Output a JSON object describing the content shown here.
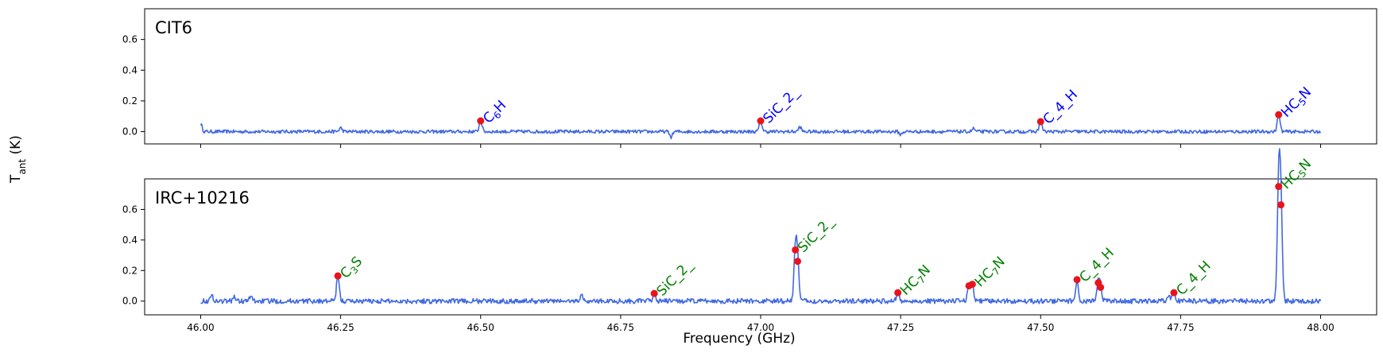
{
  "figure": {
    "xlabel": "Frequency (GHz)",
    "ylabel_main": "T",
    "ylabel_sub": "ant",
    "ylabel_unit": " (K)"
  },
  "chart_data": [
    {
      "type": "line",
      "title": "CIT6",
      "xlabel": "Frequency (GHz)",
      "ylabel": "Tant (K)",
      "xlim": [
        45.9,
        48.1
      ],
      "ylim": [
        -0.08,
        0.8
      ],
      "xticks": [
        46.0,
        46.25,
        46.5,
        46.75,
        47.0,
        47.25,
        47.5,
        47.75,
        48.0
      ],
      "xtick_labels_shown": false,
      "yticks": [
        0.0,
        0.2,
        0.4,
        0.6
      ],
      "ytick_labels": [
        "0.0",
        "0.2",
        "0.4",
        "0.6"
      ],
      "line_color": "#4169E1",
      "label_color": "#0000FF",
      "marker_color": "#E8141C",
      "baseline": [
        {
          "x": 46.0,
          "y": 0.05
        },
        {
          "x": 46.25,
          "y": 0.025
        },
        {
          "x": 46.84,
          "y": -0.035
        },
        {
          "x": 47.07,
          "y": 0.03
        },
        {
          "x": 47.25,
          "y": -0.02
        },
        {
          "x": 47.38,
          "y": 0.02
        }
      ],
      "peaks": [
        {
          "x": 46.5,
          "y": 0.07,
          "label": "C<sub>6</sub>H"
        },
        {
          "x": 47.0,
          "y": 0.07,
          "label": "SiC_2_"
        },
        {
          "x": 47.5,
          "y": 0.065,
          "label": "C_4_H"
        },
        {
          "x": 47.925,
          "y": 0.11,
          "label": "HC<sub>5</sub>N"
        }
      ]
    },
    {
      "type": "line",
      "title": "IRC+10216",
      "xlabel": "Frequency (GHz)",
      "ylabel": "Tant (K)",
      "xlim": [
        45.9,
        48.1
      ],
      "ylim": [
        -0.09,
        0.8
      ],
      "xticks": [
        46.0,
        46.25,
        46.5,
        46.75,
        47.0,
        47.25,
        47.5,
        47.75,
        48.0
      ],
      "xtick_labels": [
        "46.00",
        "46.25",
        "46.50",
        "46.75",
        "47.00",
        "47.25",
        "47.50",
        "47.75",
        "48.00"
      ],
      "yticks": [
        0.0,
        0.2,
        0.4,
        0.6
      ],
      "ytick_labels": [
        "0.0",
        "0.2",
        "0.4",
        "0.6"
      ],
      "line_color": "#4169E1",
      "label_color": "#008000",
      "marker_color": "#E8141C",
      "baseline": [
        {
          "x": 46.02,
          "y": 0.035
        },
        {
          "x": 46.06,
          "y": 0.03
        },
        {
          "x": 46.09,
          "y": 0.03
        },
        {
          "x": 46.68,
          "y": 0.04
        },
        {
          "x": 47.73,
          "y": 0.03
        }
      ],
      "peaks": [
        {
          "x": 46.245,
          "y": 0.165,
          "label": "C<sub>3</sub>S"
        },
        {
          "x": 46.81,
          "y": 0.05,
          "label": "SiC_2_"
        },
        {
          "x": 47.062,
          "y": 0.335,
          "label": "SiC_2_"
        },
        {
          "x": 47.066,
          "y": 0.26,
          "label": ""
        },
        {
          "x": 47.245,
          "y": 0.055,
          "label": "HC<sub>7</sub>N"
        },
        {
          "x": 47.372,
          "y": 0.1,
          "label": ""
        },
        {
          "x": 47.378,
          "y": 0.11,
          "label": "HC<sub>7</sub>N"
        },
        {
          "x": 47.565,
          "y": 0.14,
          "label": "C_4_H"
        },
        {
          "x": 47.603,
          "y": 0.12,
          "label": ""
        },
        {
          "x": 47.607,
          "y": 0.09,
          "label": ""
        },
        {
          "x": 47.738,
          "y": 0.055,
          "label": "C_4_H"
        },
        {
          "x": 47.925,
          "y": 0.75,
          "label": "HC<sub>5</sub>N"
        },
        {
          "x": 47.929,
          "y": 0.63,
          "label": ""
        }
      ]
    }
  ]
}
